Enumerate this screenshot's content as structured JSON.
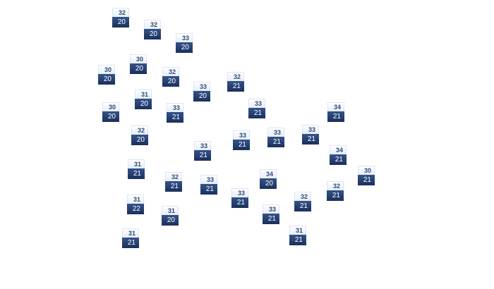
{
  "markers": [
    {
      "high": "32",
      "low": "20"
    },
    {
      "high": "32",
      "low": "20"
    },
    {
      "high": "33",
      "low": "20"
    },
    {
      "high": "30",
      "low": "20"
    },
    {
      "high": "30",
      "low": "20"
    },
    {
      "high": "32",
      "low": "20"
    },
    {
      "high": "33",
      "low": "20"
    },
    {
      "high": "32",
      "low": "21"
    },
    {
      "high": "31",
      "low": "20"
    },
    {
      "high": "30",
      "low": "20"
    },
    {
      "high": "33",
      "low": "21"
    },
    {
      "high": "33",
      "low": "21"
    },
    {
      "high": "34",
      "low": "21"
    },
    {
      "high": "32",
      "low": "20"
    },
    {
      "high": "33",
      "low": "21"
    },
    {
      "high": "33",
      "low": "21"
    },
    {
      "high": "33",
      "low": "21"
    },
    {
      "high": "33",
      "low": "21"
    },
    {
      "high": "34",
      "low": "21"
    },
    {
      "high": "31",
      "low": "21"
    },
    {
      "high": "32",
      "low": "21"
    },
    {
      "high": "33",
      "low": "21"
    },
    {
      "high": "34",
      "low": "20"
    },
    {
      "high": "30",
      "low": "21"
    },
    {
      "high": "33",
      "low": "21"
    },
    {
      "high": "32",
      "low": "21"
    },
    {
      "high": "31",
      "low": "22"
    },
    {
      "high": "31",
      "low": "20"
    },
    {
      "high": "33",
      "low": "21"
    },
    {
      "high": "32",
      "low": "21"
    },
    {
      "high": "31",
      "low": "21"
    },
    {
      "high": "31",
      "low": "21"
    }
  ],
  "colors": {
    "marker_top": "#e6eef9",
    "marker_bottom": "#1a2f5c",
    "high_text": "#2d4a7a"
  }
}
